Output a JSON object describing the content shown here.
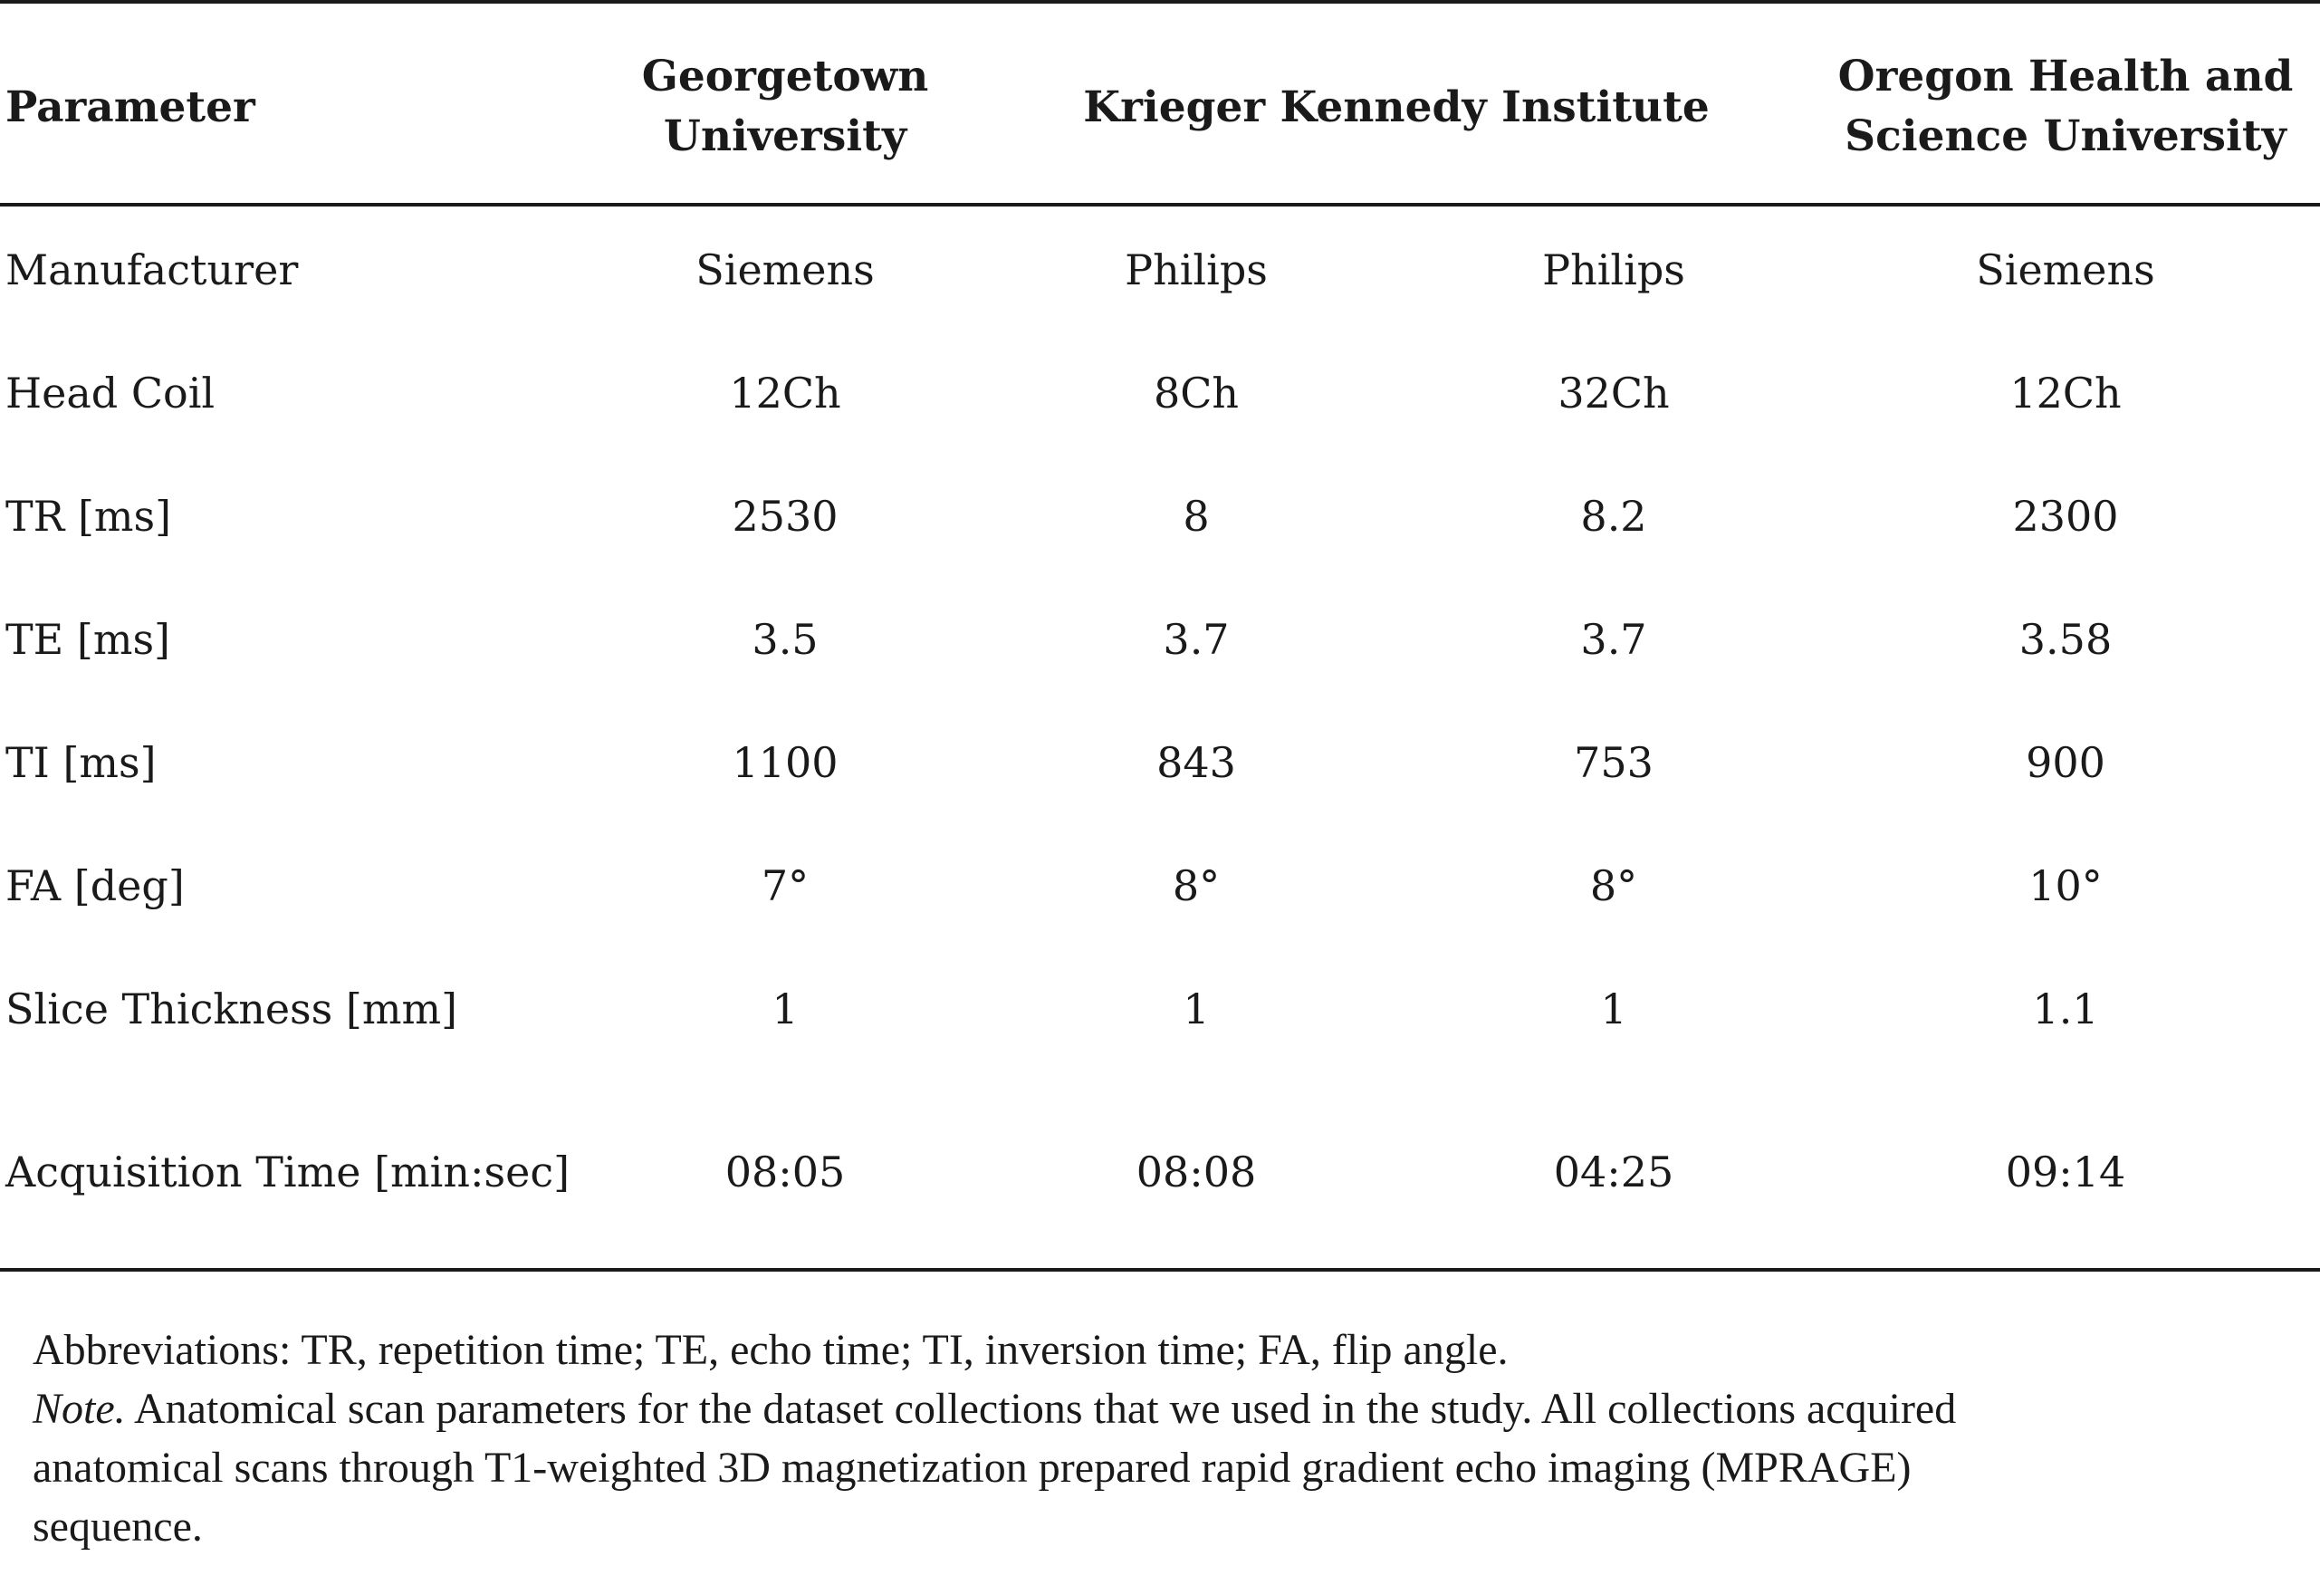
{
  "table": {
    "headers": {
      "parameter": "Parameter",
      "georgetown": [
        "Georgetown",
        "University"
      ],
      "krieger": "Krieger Kennedy Institute",
      "ohsu": [
        "Oregon Health and",
        "Science University"
      ]
    },
    "rows": [
      {
        "label": "Manufacturer",
        "values": [
          "Siemens",
          "Philips",
          "Philips",
          "Siemens"
        ]
      },
      {
        "label": "Head Coil",
        "values": [
          "12Ch",
          "8Ch",
          "32Ch",
          "12Ch"
        ]
      },
      {
        "label": "TR [ms]",
        "values": [
          "2530",
          "8",
          "8.2",
          "2300"
        ]
      },
      {
        "label": "TE [ms]",
        "values": [
          "3.5",
          "3.7",
          "3.7",
          "3.58"
        ]
      },
      {
        "label": "TI [ms]",
        "values": [
          "1100",
          "843",
          "753",
          "900"
        ]
      },
      {
        "label": "FA [deg]",
        "values": [
          "7°",
          "8°",
          "8°",
          "10°"
        ]
      },
      {
        "label": "Slice Thickness [mm]",
        "values": [
          "1",
          "1",
          "1",
          "1.1"
        ]
      },
      {
        "label": "Acquisition Time [min:sec]",
        "values": [
          "08:05",
          "08:08",
          "04:25",
          "09:14"
        ]
      }
    ]
  },
  "footnotes": {
    "abbreviations": "Abbreviations: TR, repetition time; TE, echo time; TI, inversion time; FA, flip angle.",
    "note_label": "Note.",
    "note_lines": [
      " Anatomical scan parameters for the dataset collections that we used in the study. All collections acquired",
      "anatomical scans through T1-weighted 3D magnetization prepared rapid gradient echo imaging (MPRAGE)",
      "sequence."
    ]
  }
}
